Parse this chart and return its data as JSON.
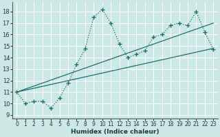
{
  "xlabel": "Humidex (Indice chaleur)",
  "bg_color": "#cce8e4",
  "grid_color": "#ffffff",
  "line_color": "#1a6e6a",
  "xlim": [
    -0.5,
    23.5
  ],
  "ylim": [
    8.7,
    18.8
  ],
  "xticks": [
    0,
    1,
    2,
    3,
    4,
    5,
    6,
    7,
    8,
    9,
    10,
    11,
    12,
    13,
    14,
    15,
    16,
    17,
    18,
    19,
    20,
    21,
    22,
    23
  ],
  "yticks": [
    9,
    10,
    11,
    12,
    13,
    14,
    15,
    16,
    17,
    18
  ],
  "main_x": [
    0,
    1,
    2,
    3,
    4,
    5,
    6,
    7,
    8,
    9,
    10,
    11,
    12,
    13,
    14,
    15,
    16,
    17,
    18,
    19,
    20,
    21,
    22,
    23
  ],
  "main_y": [
    11.0,
    10.0,
    10.2,
    10.2,
    9.6,
    10.5,
    11.8,
    13.4,
    14.8,
    17.5,
    18.2,
    17.0,
    15.2,
    14.0,
    14.3,
    14.6,
    15.8,
    16.0,
    16.8,
    17.0,
    16.8,
    18.0,
    16.2,
    14.7
  ],
  "line1_x": [
    0,
    23
  ],
  "line1_y": [
    11.0,
    17.0
  ],
  "line2_x": [
    0,
    23
  ],
  "line2_y": [
    11.0,
    14.8
  ]
}
